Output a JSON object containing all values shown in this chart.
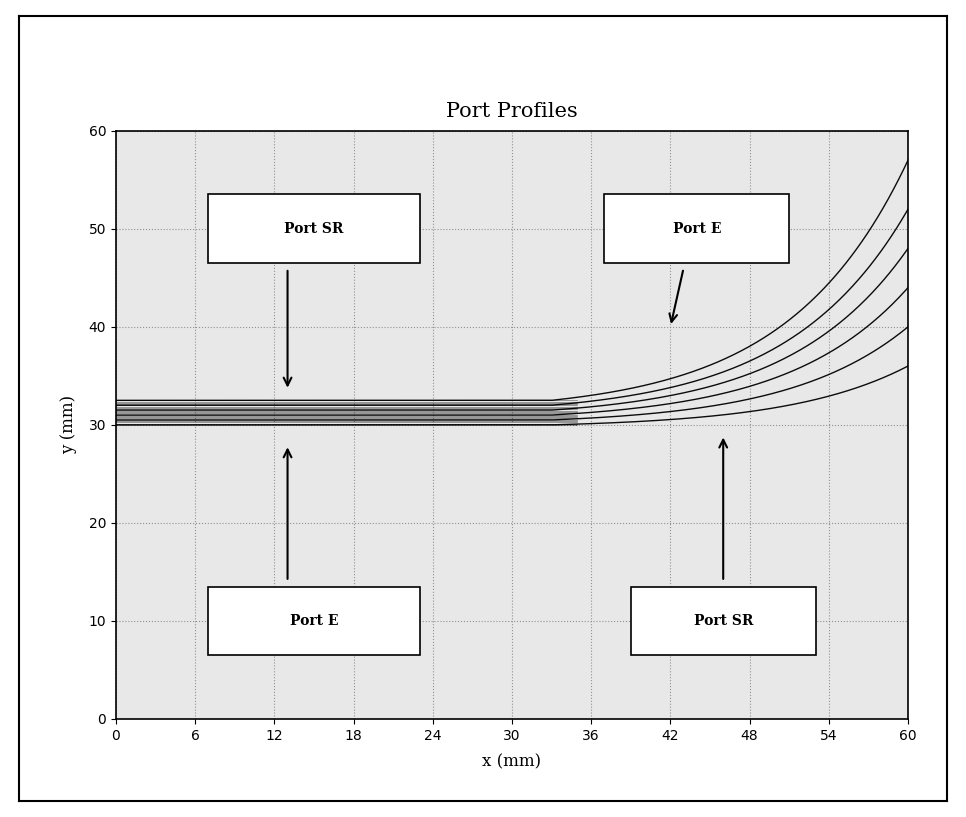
{
  "title": "Port Profiles",
  "xlabel": "x (mm)",
  "ylabel": "y (mm)",
  "xlim": [
    0,
    60
  ],
  "ylim": [
    0,
    60
  ],
  "xticks": [
    0,
    6,
    12,
    18,
    24,
    30,
    36,
    42,
    48,
    54,
    60
  ],
  "yticks": [
    0,
    10,
    20,
    30,
    40,
    50,
    60
  ],
  "background_color": "#ffffff",
  "plot_bg_color": "#e8e8e8",
  "grid_color": "#888888",
  "curve_color": "#000000",
  "n_curves": 6,
  "y_center": 31.5,
  "y_starts": [
    30.0,
    30.5,
    31.0,
    31.5,
    32.0,
    32.5
  ],
  "y_ends": [
    36.0,
    40.0,
    44.0,
    48.0,
    52.0,
    57.0
  ],
  "flare_start_x": 33,
  "annotations_upper_left": {
    "text": "Port SR",
    "bx": 15,
    "by": 50,
    "bw": 16,
    "bh": 7,
    "atx": 13,
    "aty": 46,
    "arx": 13,
    "ary": 33.5
  },
  "annotations_upper_right": {
    "text": "Port E",
    "bx": 44,
    "by": 50,
    "bw": 14,
    "bh": 7,
    "atx": 43,
    "aty": 46,
    "arx": 42,
    "ary": 40
  },
  "annotations_lower_left": {
    "text": "Port E",
    "bx": 15,
    "by": 10,
    "bw": 16,
    "bh": 7,
    "atx": 13,
    "aty": 14,
    "arx": 13,
    "ary": 28
  },
  "annotations_lower_right": {
    "text": "Port SR",
    "bx": 46,
    "by": 10,
    "bw": 14,
    "bh": 7,
    "atx": 46,
    "aty": 14,
    "arx": 46,
    "ary": 29
  }
}
